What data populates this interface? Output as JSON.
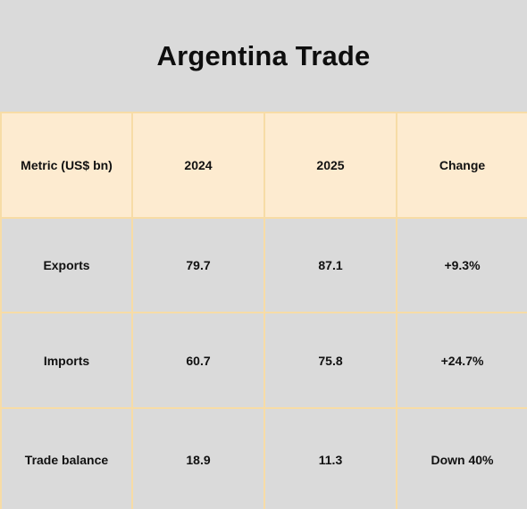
{
  "chart_data": {
    "type": "table",
    "title": "Argentina Trade",
    "columns": [
      "Metric (US$ bn)",
      "2024",
      "2025",
      "Change"
    ],
    "rows": [
      [
        "Exports",
        "79.7",
        "87.1",
        "+9.3%"
      ],
      [
        "Imports",
        "60.7",
        "75.8",
        "+24.7%"
      ],
      [
        "Trade balance",
        "18.9",
        "11.3",
        "Down 40%"
      ]
    ]
  },
  "colors": {
    "background": "#dadada",
    "header_fill": "#fdebd0",
    "grid_line": "#f7dca6",
    "text": "#111111"
  }
}
